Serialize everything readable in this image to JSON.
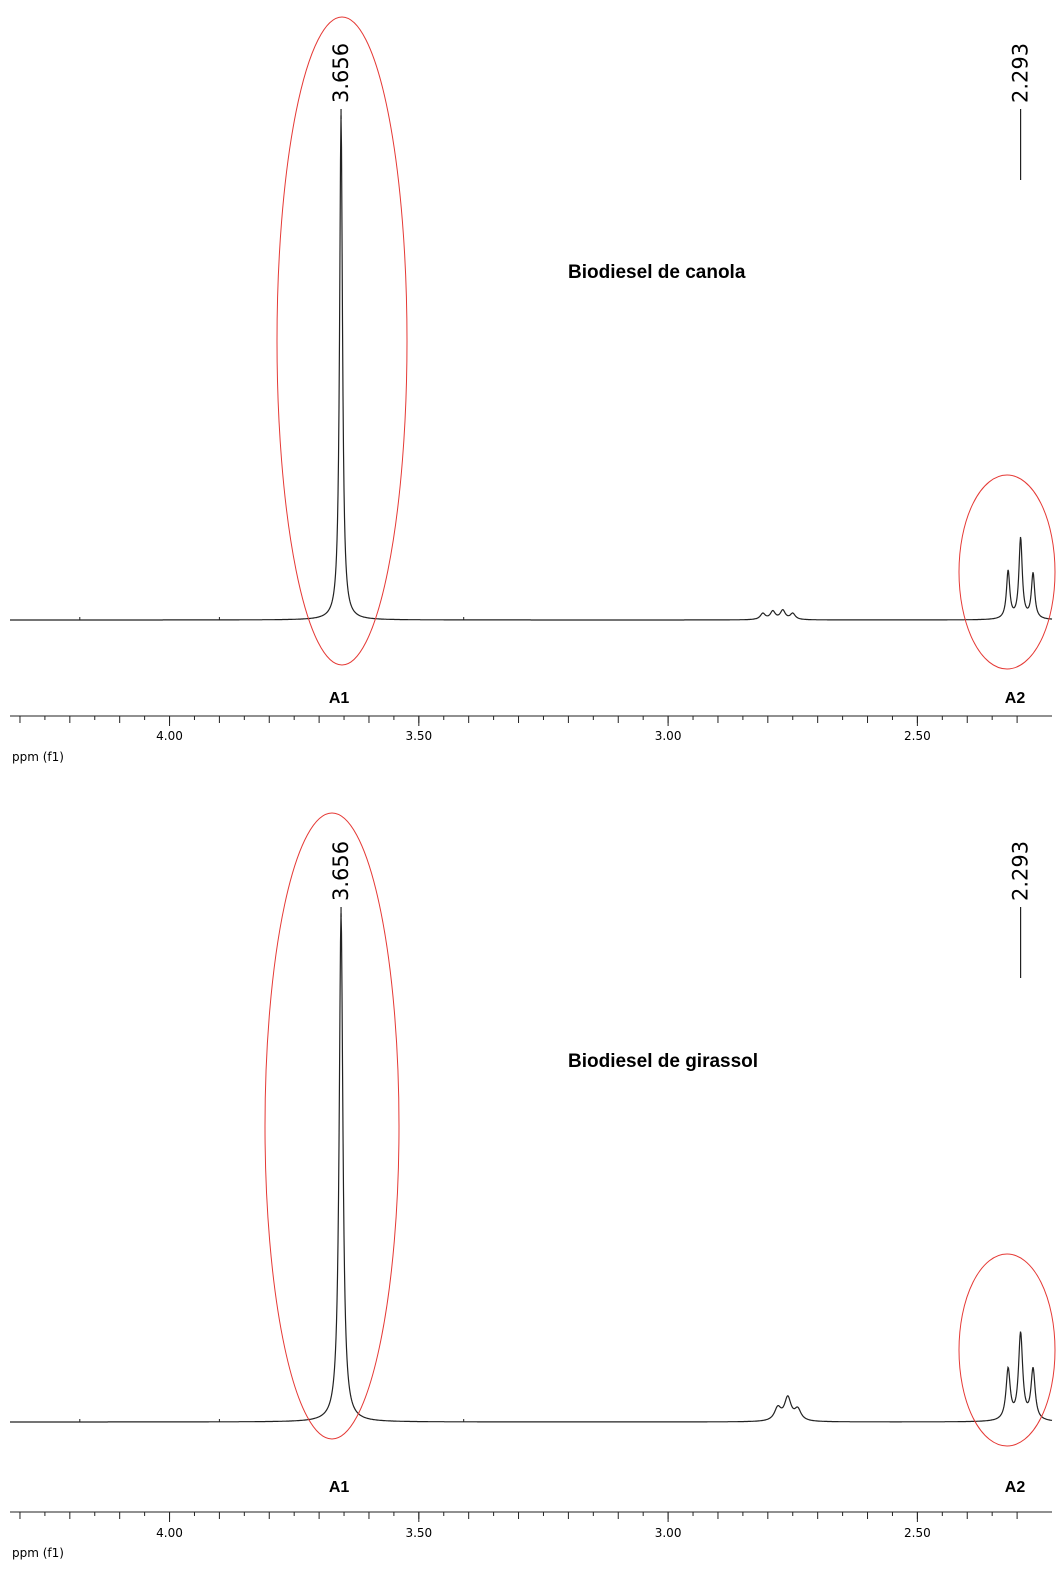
{
  "chart_data": [
    {
      "type": "line",
      "title": "Biodiesel de canola",
      "xlabel": "ppm (f1)",
      "xlim": [
        4.32,
        2.23
      ],
      "x_reversed": true,
      "ticks": [
        {
          "value": 4.0,
          "label": "4.00"
        },
        {
          "value": 3.5,
          "label": "3.50"
        },
        {
          "value": 3.0,
          "label": "3.00"
        },
        {
          "value": 2.5,
          "label": "2.50"
        }
      ],
      "minor_tick_step": 0.1,
      "series": [
        {
          "peaks": [
            {
              "x": 3.656,
              "height": 1.0,
              "width": 0.0035
            },
            {
              "x": 2.293,
              "height": 0.16,
              "width": 0.004
            },
            {
              "x": 2.318,
              "height": 0.095,
              "width": 0.004
            },
            {
              "x": 2.268,
              "height": 0.09,
              "width": 0.004
            },
            {
              "x": 2.81,
              "height": 0.012,
              "width": 0.006
            },
            {
              "x": 2.79,
              "height": 0.016,
              "width": 0.006
            },
            {
              "x": 2.77,
              "height": 0.018,
              "width": 0.006
            },
            {
              "x": 2.75,
              "height": 0.012,
              "width": 0.006
            }
          ]
        }
      ],
      "peak_labels": [
        {
          "value": 3.656,
          "label": "3.656"
        },
        {
          "value": 2.293,
          "label": "2.293"
        }
      ],
      "regions": [
        {
          "label": "A1",
          "center": 3.66
        },
        {
          "label": "A2",
          "center": 2.293
        }
      ],
      "annotation_color": "#e53935"
    },
    {
      "type": "line",
      "title": "Biodiesel de girassol",
      "xlabel": "ppm (f1)",
      "xlim": [
        4.32,
        2.23
      ],
      "x_reversed": true,
      "ticks": [
        {
          "value": 4.0,
          "label": "4.00"
        },
        {
          "value": 3.5,
          "label": "3.50"
        },
        {
          "value": 3.0,
          "label": "3.00"
        },
        {
          "value": 2.5,
          "label": "2.50"
        }
      ],
      "minor_tick_step": 0.1,
      "series": [
        {
          "peaks": [
            {
              "x": 3.656,
              "height": 1.0,
              "width": 0.0045
            },
            {
              "x": 2.293,
              "height": 0.17,
              "width": 0.005
            },
            {
              "x": 2.318,
              "height": 0.1,
              "width": 0.005
            },
            {
              "x": 2.268,
              "height": 0.1,
              "width": 0.005
            },
            {
              "x": 2.78,
              "height": 0.025,
              "width": 0.008
            },
            {
              "x": 2.76,
              "height": 0.045,
              "width": 0.008
            },
            {
              "x": 2.74,
              "height": 0.022,
              "width": 0.008
            }
          ]
        }
      ],
      "peak_labels": [
        {
          "value": 3.656,
          "label": "3.656"
        },
        {
          "value": 2.293,
          "label": "2.293"
        }
      ],
      "regions": [
        {
          "label": "A1",
          "center": 3.66
        },
        {
          "label": "A2",
          "center": 2.293
        }
      ],
      "annotation_color": "#e53935"
    }
  ]
}
